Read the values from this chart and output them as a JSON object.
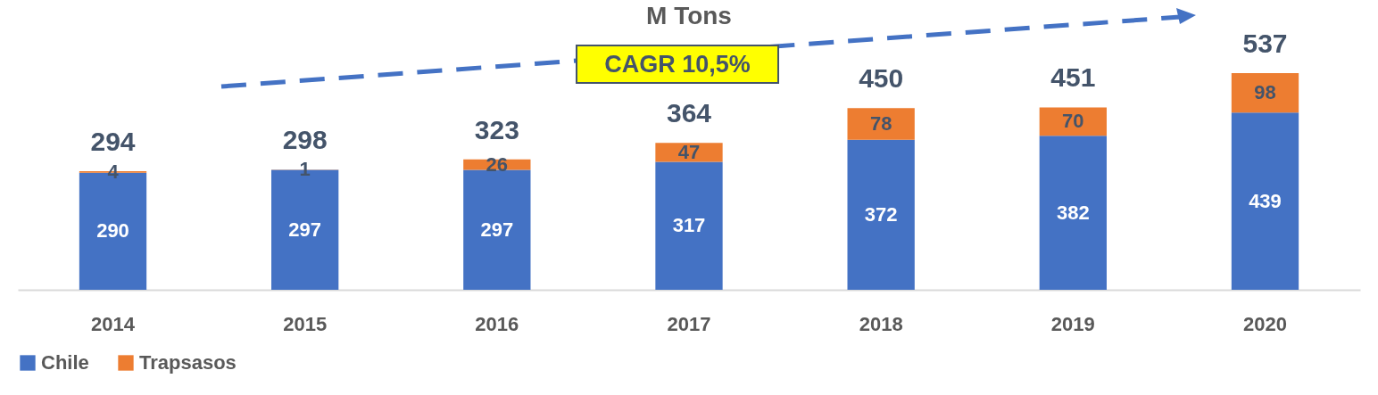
{
  "chart_data": {
    "type": "bar",
    "title": "M Tons",
    "stacked": true,
    "data_labels": true,
    "legend": "bottom",
    "tick_labels": "x",
    "categories": [
      "2014",
      "2015",
      "2016",
      "2017",
      "2018",
      "2019",
      "2020"
    ],
    "series": [
      {
        "name": "Chile",
        "color": "#4472c4",
        "values": [
          290,
          297,
          297,
          317,
          372,
          382,
          439
        ]
      },
      {
        "name": "Trapsasos",
        "color": "#ed7d31",
        "values": [
          4,
          1,
          26,
          47,
          78,
          70,
          98
        ]
      }
    ],
    "totals": [
      "294",
      "298",
      "323",
      "364",
      "450",
      "451",
      "537"
    ],
    "annotations": [
      "CAGR 10,5%"
    ]
  }
}
